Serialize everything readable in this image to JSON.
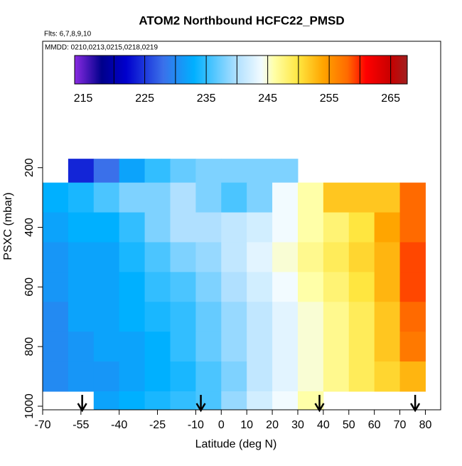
{
  "chart_data": {
    "type": "heatmap",
    "title": "ATOM2 Northbound HCFC22_PMSD",
    "annotations": [
      "Flts: 6,7,8,9,10",
      "MMDD: 0210,0213,0215,0218,0219"
    ],
    "x_label": "Latitude (deg N)",
    "y_label": "PSXC (mbar)",
    "xlim": [
      -70,
      86
    ],
    "ylim": [
      1012,
      -224
    ],
    "xticks": [
      -70,
      -55,
      -40,
      -25,
      -10,
      0,
      10,
      20,
      30,
      40,
      50,
      60,
      70,
      80
    ],
    "yticks": [
      200,
      400,
      600,
      800,
      1000
    ],
    "x_edges": [
      -70,
      -60,
      -50,
      -40,
      -30,
      -20,
      -10,
      0,
      10,
      20,
      30,
      40,
      50,
      60,
      70,
      80
    ],
    "y_edges": [
      170,
      250,
      350,
      450,
      550,
      650,
      750,
      850,
      950,
      1010
    ],
    "z": [
      [
        null,
        224,
        228,
        232,
        235,
        237,
        238,
        238,
        238,
        238,
        null,
        null,
        null,
        null,
        null
      ],
      [
        233,
        234,
        236,
        238,
        238,
        240,
        238,
        236,
        238,
        244,
        246,
        252,
        252,
        252,
        258
      ],
      [
        232,
        233,
        233,
        235,
        238,
        240,
        240,
        241,
        242,
        244,
        246,
        248,
        250,
        254,
        258
      ],
      [
        231,
        232,
        232,
        234,
        236,
        238,
        239,
        241,
        243,
        245,
        247,
        249,
        251,
        253,
        259
      ],
      [
        231,
        232,
        232,
        233,
        235,
        236,
        238,
        240,
        242,
        244,
        246,
        248,
        250,
        253,
        259
      ],
      [
        230,
        232,
        232,
        233,
        234,
        235,
        237,
        239,
        241,
        243,
        245,
        247,
        249,
        252,
        258
      ],
      [
        230,
        231,
        232,
        232,
        233,
        235,
        237,
        239,
        241,
        243,
        245,
        247,
        249,
        252,
        257
      ],
      [
        230,
        231,
        231,
        232,
        233,
        234,
        236,
        238,
        241,
        243,
        245,
        247,
        249,
        251,
        253
      ],
      [
        null,
        null,
        232,
        233,
        234,
        235,
        236,
        239,
        242,
        244,
        246,
        null,
        null,
        null,
        null
      ]
    ],
    "colorbar_lim": [
      213.6,
      267.7
    ],
    "colorbar_ticks": [
      215,
      225,
      235,
      245,
      255,
      265
    ],
    "colorbar_breaks": [
      220,
      225,
      230,
      235,
      240,
      245,
      250,
      255,
      260,
      265
    ],
    "color_stops": [
      {
        "value": 213.6,
        "color": "#8a2be2"
      },
      {
        "value": 218,
        "color": "#00008b"
      },
      {
        "value": 222,
        "color": "#0000cd"
      },
      {
        "value": 228,
        "color": "#3a70ea"
      },
      {
        "value": 233,
        "color": "#00b0ff"
      },
      {
        "value": 240,
        "color": "#b0e0ff"
      },
      {
        "value": 244,
        "color": "#f2fbff"
      },
      {
        "value": 246,
        "color": "#ffffa8"
      },
      {
        "value": 250,
        "color": "#ffe640"
      },
      {
        "value": 254,
        "color": "#ffa500"
      },
      {
        "value": 258,
        "color": "#ff6a00"
      },
      {
        "value": 261,
        "color": "#ff0000"
      },
      {
        "value": 265,
        "color": "#c80000"
      },
      {
        "value": 267.7,
        "color": "#a02020"
      }
    ],
    "markers_x": [
      -54.5,
      -8,
      38.5,
      76
    ]
  }
}
